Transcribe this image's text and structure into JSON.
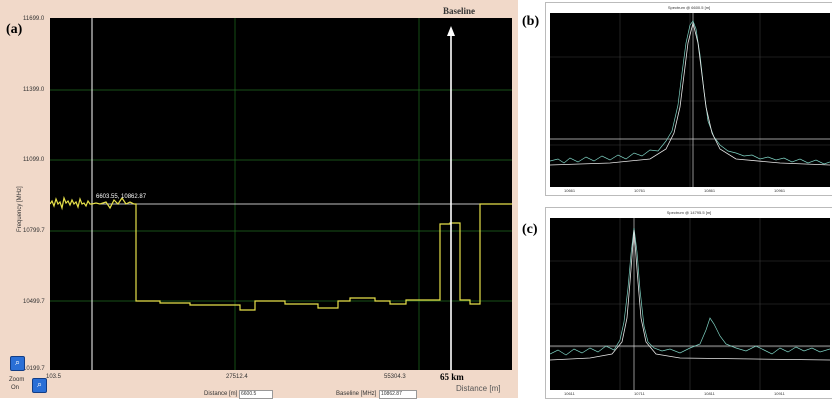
{
  "panel_a": {
    "label": "(a)",
    "baseline_label": "Baseline",
    "y_axis_title": "Frequency [MHz]",
    "y_ticks": [
      "11699.0",
      "11399.0",
      "11099.0",
      "10799.7",
      "10499.7",
      "10199.7"
    ],
    "x_ticks": [
      "103.5",
      "27512.4",
      "55304.3"
    ],
    "x_axis_title": "Distance [m]",
    "marker_distance": "65 km",
    "cursor_readout": "6603.55, 10862.87",
    "zoom_label": "Zoom",
    "zoom_sub": "On",
    "distance_field_label": "Distance [m]",
    "distance_field_value": "6600.5",
    "baseline_field_label": "Baseline [MHz]",
    "baseline_field_value": "10862.87",
    "colors": {
      "trace": "#e6e04a",
      "grid": "#1f6d1f",
      "cursor": "#ffffff",
      "baseline": "#ffffff"
    }
  },
  "panel_b": {
    "label": "(b)",
    "title": "Spectrum @ 6600.5 [m]",
    "x_ticks": [
      "10661",
      "10761",
      "10861",
      "10961"
    ]
  },
  "panel_c": {
    "label": "(c)",
    "title": "Spectrum @ 14795.5 [m]",
    "x_ticks": [
      "10611",
      "10711",
      "10811",
      "10911"
    ]
  }
}
